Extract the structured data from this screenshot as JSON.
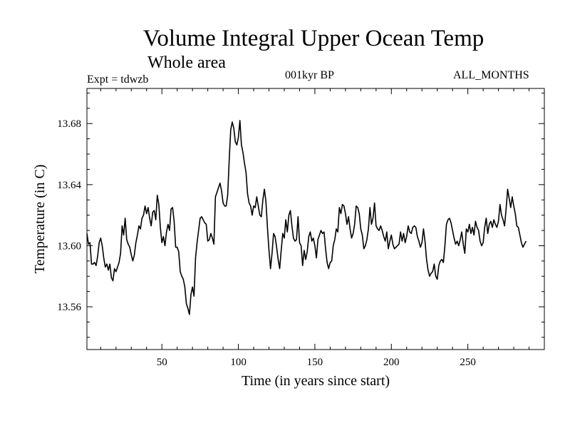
{
  "header": {
    "title": "Volume Integral Upper Ocean Temp",
    "subtitle": "Whole area",
    "experiment": "Expt = tdwzb",
    "period": "001kyr BP",
    "months": "ALL_MONTHS"
  },
  "chart_data": {
    "type": "line",
    "title": "Volume Integral Upper Ocean Temp",
    "subtitle": "Whole area",
    "xlabel": "Time (in years since start)",
    "ylabel": "Temperature (in C)",
    "xlim": [
      1,
      300
    ],
    "ylim": [
      13.532,
      13.703
    ],
    "x_ticks": [
      50,
      100,
      150,
      200,
      250
    ],
    "y_ticks": [
      13.56,
      13.6,
      13.64,
      13.68
    ],
    "x_tick_labels": [
      "50",
      "100",
      "150",
      "200",
      "250"
    ],
    "y_tick_labels": [
      "13.56",
      "13.60",
      "13.64",
      "13.68"
    ],
    "grid": false,
    "line_color": "#000000",
    "series": [
      {
        "x_start": 1,
        "x_step": 1,
        "values": [
          13.608,
          13.601,
          13.602,
          13.588,
          13.588,
          13.589,
          13.587,
          13.593,
          13.602,
          13.605,
          13.6,
          13.592,
          13.586,
          13.588,
          13.584,
          13.588,
          13.579,
          13.577,
          13.585,
          13.583,
          13.586,
          13.589,
          13.595,
          13.613,
          13.607,
          13.618,
          13.604,
          13.601,
          13.599,
          13.594,
          13.59,
          13.594,
          13.602,
          13.607,
          13.613,
          13.611,
          13.618,
          13.62,
          13.626,
          13.621,
          13.625,
          13.618,
          13.613,
          13.622,
          13.623,
          13.617,
          13.633,
          13.627,
          13.612,
          13.602,
          13.606,
          13.6,
          13.609,
          13.614,
          13.61,
          13.624,
          13.625,
          13.616,
          13.599,
          13.599,
          13.596,
          13.583,
          13.58,
          13.578,
          13.573,
          13.562,
          13.559,
          13.555,
          13.568,
          13.573,
          13.567,
          13.592,
          13.602,
          13.61,
          13.618,
          13.619,
          13.617,
          13.615,
          13.614,
          13.603,
          13.604,
          13.608,
          13.605,
          13.601,
          13.632,
          13.635,
          13.638,
          13.641,
          13.636,
          13.628,
          13.626,
          13.626,
          13.633,
          13.656,
          13.676,
          13.681,
          13.677,
          13.668,
          13.666,
          13.671,
          13.682,
          13.666,
          13.661,
          13.654,
          13.648,
          13.634,
          13.628,
          13.626,
          13.62,
          13.626,
          13.625,
          13.632,
          13.626,
          13.62,
          13.619,
          13.63,
          13.637,
          13.629,
          13.612,
          13.597,
          13.585,
          13.595,
          13.608,
          13.606,
          13.599,
          13.591,
          13.585,
          13.597,
          13.608,
          13.605,
          13.617,
          13.609,
          13.62,
          13.623,
          13.613,
          13.605,
          13.603,
          13.604,
          13.619,
          13.602,
          13.6,
          13.587,
          13.597,
          13.591,
          13.596,
          13.606,
          13.609,
          13.603,
          13.605,
          13.6,
          13.592,
          13.604,
          13.607,
          13.61,
          13.608,
          13.609,
          13.598,
          13.589,
          13.585,
          13.589,
          13.59,
          13.6,
          13.604,
          13.611,
          13.609,
          13.625,
          13.621,
          13.627,
          13.626,
          13.621,
          13.614,
          13.619,
          13.611,
          13.605,
          13.608,
          13.614,
          13.626,
          13.625,
          13.621,
          13.611,
          13.607,
          13.598,
          13.6,
          13.604,
          13.611,
          13.625,
          13.614,
          13.618,
          13.628,
          13.613,
          13.611,
          13.61,
          13.613,
          13.61,
          13.606,
          13.603,
          13.609,
          13.598,
          13.603,
          13.607,
          13.601,
          13.598,
          13.599,
          13.6,
          13.601,
          13.609,
          13.603,
          13.608,
          13.602,
          13.606,
          13.613,
          13.609,
          13.608,
          13.612,
          13.613,
          13.612,
          13.606,
          13.603,
          13.599,
          13.602,
          13.611,
          13.603,
          13.591,
          13.584,
          13.58,
          13.582,
          13.583,
          13.588,
          13.58,
          13.578,
          13.587,
          13.59,
          13.591,
          13.589,
          13.6,
          13.614,
          13.617,
          13.618,
          13.615,
          13.61,
          13.605,
          13.601,
          13.603,
          13.6,
          13.604,
          13.609,
          13.601,
          13.595,
          13.611,
          13.609,
          13.614,
          13.608,
          13.612,
          13.607,
          13.616,
          13.612,
          13.61,
          13.603,
          13.6,
          13.602,
          13.612,
          13.618,
          13.608,
          13.614,
          13.616,
          13.612,
          13.617,
          13.614,
          13.612,
          13.616,
          13.627,
          13.62,
          13.617,
          13.613,
          13.624,
          13.637,
          13.631,
          13.625,
          13.632,
          13.626,
          13.621,
          13.613,
          13.612,
          13.607,
          13.602,
          13.599,
          13.601,
          13.603
        ]
      }
    ]
  }
}
